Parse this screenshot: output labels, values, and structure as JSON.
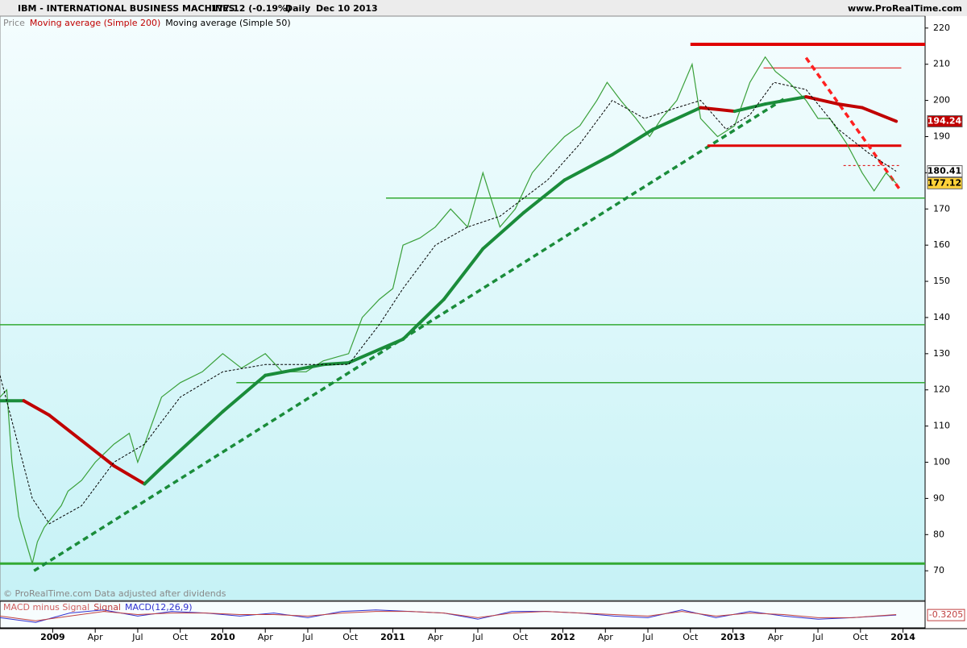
{
  "header": {
    "symbol": "IBM - INTERNATIONAL BUSINESS MACHINES",
    "quote": "177.12 (-0.19%)",
    "period": "Daily",
    "date": "Dec 10 2013",
    "site": "www.ProRealTime.com"
  },
  "chart_data": {
    "type": "line",
    "copyright": "© ProRealTime.com Data adjusted after dividends",
    "xlim": [
      2008.69,
      2014.13
    ],
    "ylim": [
      61.8,
      223.3
    ],
    "xticks": [
      2009,
      {
        "value": 2009.25,
        "label": "Apr"
      },
      {
        "value": 2009.5,
        "label": "Jul"
      },
      {
        "value": 2009.75,
        "label": "Oct"
      },
      2010,
      {
        "value": 2010.25,
        "label": "Apr"
      },
      {
        "value": 2010.5,
        "label": "Jul"
      },
      {
        "value": 2010.75,
        "label": "Oct"
      },
      2011,
      {
        "value": 2011.25,
        "label": "Apr"
      },
      {
        "value": 2011.5,
        "label": "Jul"
      },
      {
        "value": 2011.75,
        "label": "Oct"
      },
      2012,
      {
        "value": 2012.25,
        "label": "Apr"
      },
      {
        "value": 2012.5,
        "label": "Jul"
      },
      {
        "value": 2012.75,
        "label": "Oct"
      },
      2013,
      {
        "value": 2013.25,
        "label": "Apr"
      },
      {
        "value": 2013.5,
        "label": "Jul"
      },
      {
        "value": 2013.75,
        "label": "Oct"
      },
      2014
    ],
    "yticks": [
      70,
      80,
      90,
      100,
      110,
      120,
      130,
      140,
      150,
      160,
      170,
      180,
      190,
      200,
      210,
      220
    ],
    "series": [
      {
        "name": "Price",
        "color": "#3aa03a",
        "width": 1.2,
        "x": [
          2008.69,
          2008.73,
          2008.76,
          2008.8,
          2008.83,
          2008.88,
          2008.91,
          2008.95,
          2009.0,
          2009.05,
          2009.09,
          2009.17,
          2009.25,
          2009.36,
          2009.45,
          2009.5,
          2009.54,
          2009.64,
          2009.75,
          2009.88,
          2010.0,
          2010.11,
          2010.25,
          2010.35,
          2010.49,
          2010.59,
          2010.74,
          2010.82,
          2010.92,
          2011.0,
          2011.06,
          2011.16,
          2011.25,
          2011.34,
          2011.44,
          2011.53,
          2011.63,
          2011.72,
          2011.82,
          2011.91,
          2012.01,
          2012.1,
          2012.2,
          2012.26,
          2012.34,
          2012.43,
          2012.51,
          2012.58,
          2012.67,
          2012.76,
          2012.81,
          2012.91,
          2013.01,
          2013.1,
          2013.19,
          2013.25,
          2013.33,
          2013.43,
          2013.5,
          2013.57,
          2013.67,
          2013.76,
          2013.83,
          2013.9,
          2013.96
        ],
        "values": [
          118,
          120,
          100,
          85,
          80,
          72,
          78,
          82,
          85,
          88,
          92,
          95,
          100,
          105,
          108,
          100,
          105,
          118,
          122,
          125,
          130,
          126,
          130,
          125,
          125,
          128,
          130,
          140,
          145,
          148,
          160,
          162,
          165,
          170,
          165,
          180,
          165,
          170,
          180,
          185,
          190,
          193,
          200,
          205,
          200,
          195,
          190,
          195,
          200,
          210,
          195,
          190,
          193,
          205,
          212,
          208,
          205,
          200,
          195,
          195,
          188,
          180,
          175,
          180,
          177.12
        ]
      },
      {
        "name": "Moving average (Simple 200)",
        "color": "#c00000",
        "up_color": "#1a8c3a",
        "width": 4,
        "x": [
          2008.69,
          2008.83,
          2008.98,
          2009.17,
          2009.36,
          2009.54,
          2009.64,
          2010.0,
          2010.25,
          2010.59,
          2010.74,
          2011.06,
          2011.3,
          2011.53,
          2011.77,
          2012.01,
          2012.29,
          2012.53,
          2012.81,
          2013.01,
          2013.19,
          2013.43,
          2013.62,
          2013.76,
          2013.96
        ],
        "values": [
          117,
          117,
          113,
          106,
          99,
          94,
          98.5,
          114,
          124,
          127,
          127.5,
          134,
          145,
          159,
          169,
          178,
          185,
          192,
          198,
          197,
          199,
          201,
          199,
          198,
          194.24
        ]
      },
      {
        "name": "Moving average (Simple 50)",
        "color": "#000000",
        "width": 1,
        "dash": "3,2",
        "x": [
          2008.69,
          2008.88,
          2008.98,
          2009.17,
          2009.36,
          2009.54,
          2009.75,
          2010.0,
          2010.25,
          2010.59,
          2010.74,
          2010.92,
          2011.06,
          2011.25,
          2011.44,
          2011.63,
          2011.91,
          2012.1,
          2012.29,
          2012.48,
          2012.67,
          2012.81,
          2012.96,
          2013.1,
          2013.24,
          2013.43,
          2013.62,
          2013.81,
          2013.96
        ],
        "values": [
          124,
          90,
          83,
          88,
          100,
          105,
          118,
          125,
          127,
          127,
          127,
          138,
          148,
          160,
          165,
          168,
          178,
          188,
          200,
          195,
          198,
          200,
          192,
          196,
          205,
          203,
          192,
          185,
          180.41
        ]
      }
    ],
    "lines": [
      {
        "x": [
          2008.69,
          2014.13
        ],
        "y": [
          72,
          72
        ],
        "color": "#33aa33",
        "width": 3
      },
      {
        "x": [
          2010.08,
          2014.13
        ],
        "y": [
          122,
          122
        ],
        "color": "#33aa33",
        "width": 1.5
      },
      {
        "x": [
          2008.69,
          2014.13
        ],
        "y": [
          138,
          138
        ],
        "color": "#33aa33",
        "width": 1.5
      },
      {
        "x": [
          2010.96,
          2014.13
        ],
        "y": [
          173,
          173
        ],
        "color": "#33aa33",
        "width": 1.5
      },
      {
        "x": [
          2008.89,
          2013.3
        ],
        "y": [
          70,
          200.4
        ],
        "color": "#1a8c3a",
        "width": 3.5,
        "dash": "7,5"
      },
      {
        "x": [
          2012.75,
          2014.13
        ],
        "y": [
          215.5,
          215.5
        ],
        "color": "#e00000",
        "width": 4
      },
      {
        "x": [
          2012.85,
          2013.99
        ],
        "y": [
          187.5,
          187.5
        ],
        "color": "#e00000",
        "width": 3
      },
      {
        "x": [
          2013.18,
          2013.99
        ],
        "y": [
          209,
          209
        ],
        "color": "#e00000",
        "width": 1
      },
      {
        "x": [
          2013.65,
          2013.99
        ],
        "y": [
          182,
          182
        ],
        "color": "#e00000",
        "width": 1,
        "dash": "3,3"
      },
      {
        "x": [
          2013.43,
          2013.99
        ],
        "y": [
          211.8,
          174.8
        ],
        "color": "#ff2020",
        "width": 3.5,
        "dash": "7,5"
      }
    ],
    "price_labels": [
      {
        "value": 194.24,
        "fill": "#c00000",
        "text_color": "#ffffff"
      },
      {
        "value": 180.41,
        "fill": "#ffffff",
        "text_color": "#000000"
      },
      {
        "value": 177.12,
        "fill": "#ffd23a",
        "text_color": "#000000"
      }
    ],
    "macd": {
      "ylim": [
        -8,
        8
      ],
      "value_label": -0.3205,
      "legend": [
        {
          "name": "MACD minus Signal",
          "color": "#d06060"
        },
        {
          "name": "Signal",
          "color": "#c04040"
        },
        {
          "name": "MACD(12,26,9)",
          "color": "#3030d0"
        }
      ],
      "x": [
        2008.69,
        2008.9,
        2009.1,
        2009.3,
        2009.5,
        2009.7,
        2009.9,
        2010.1,
        2010.3,
        2010.5,
        2010.7,
        2010.9,
        2011.1,
        2011.3,
        2011.5,
        2011.7,
        2011.9,
        2012.1,
        2012.3,
        2012.5,
        2012.7,
        2012.9,
        2013.1,
        2013.3,
        2013.5,
        2013.7,
        2013.96
      ],
      "macd_values": [
        -2,
        -5,
        1,
        3,
        -1,
        2,
        1,
        -1,
        1,
        -2,
        2,
        3,
        2,
        1,
        -3,
        2,
        2,
        1,
        -1,
        -2,
        3,
        -2,
        2,
        -1,
        -3,
        -2,
        -0.32
      ],
      "signal_values": [
        -1,
        -4,
        -1,
        2,
        0,
        1,
        1,
        0,
        0,
        -1,
        1,
        2,
        2,
        1,
        -2,
        1,
        2,
        1,
        0,
        -1,
        2,
        -1,
        1,
        0,
        -2,
        -2,
        0
      ]
    }
  }
}
